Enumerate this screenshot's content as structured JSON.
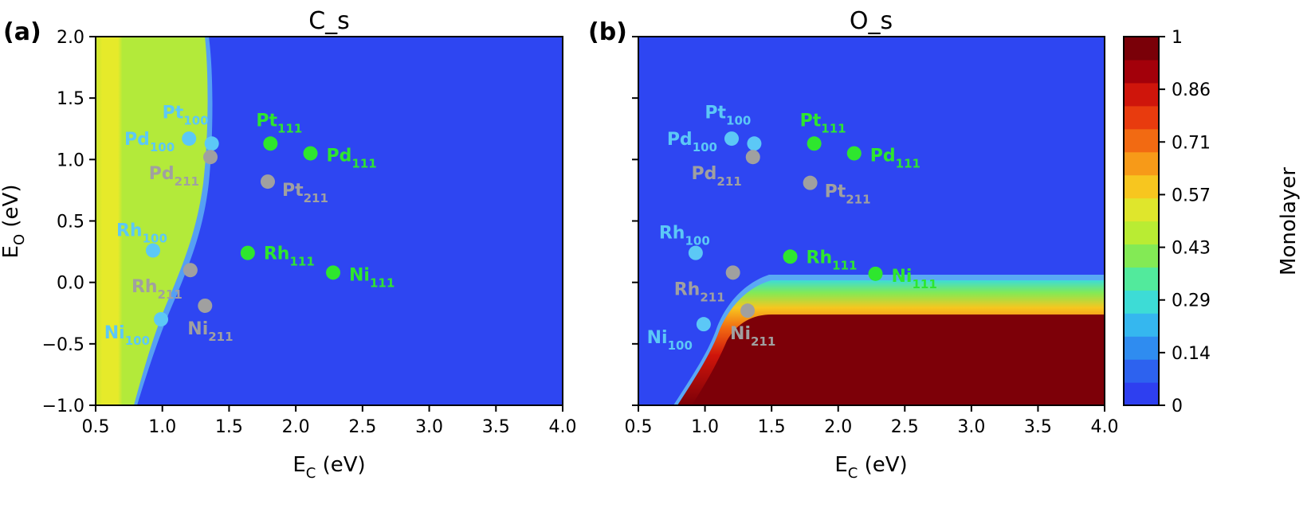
{
  "chart_data": [
    {
      "type": "heatmap",
      "panel_label": "(a)",
      "title": "C_s",
      "xlabel": {
        "main": "E",
        "sub": "C",
        "rest": " (eV)"
      },
      "ylabel": {
        "main": "E",
        "sub": "O",
        "rest": " (eV)"
      },
      "xlim": [
        0.5,
        4.0
      ],
      "ylim": [
        -1.0,
        2.0
      ],
      "xticks": [
        "0.5",
        "1.0",
        "1.5",
        "2.0",
        "2.5",
        "3.0",
        "3.5",
        "4.0"
      ],
      "yticks": [
        "−1.0",
        "−0.5",
        "0.0",
        "0.5",
        "1.0",
        "1.5",
        "2.0"
      ],
      "points": [
        {
          "metal": "Pt",
          "facet": "100",
          "x": 1.37,
          "y": 1.13,
          "group": "100"
        },
        {
          "metal": "Pd",
          "facet": "100",
          "x": 1.2,
          "y": 1.17,
          "group": "100"
        },
        {
          "metal": "Rh",
          "facet": "100",
          "x": 0.93,
          "y": 0.26,
          "group": "100"
        },
        {
          "metal": "Ni",
          "facet": "100",
          "x": 0.99,
          "y": -0.3,
          "group": "100"
        },
        {
          "metal": "Pt",
          "facet": "111",
          "x": 1.81,
          "y": 1.13,
          "group": "111"
        },
        {
          "metal": "Pd",
          "facet": "111",
          "x": 2.11,
          "y": 1.05,
          "group": "111"
        },
        {
          "metal": "Rh",
          "facet": "111",
          "x": 1.64,
          "y": 0.24,
          "group": "111"
        },
        {
          "metal": "Ni",
          "facet": "111",
          "x": 2.28,
          "y": 0.08,
          "group": "111"
        },
        {
          "metal": "Pd",
          "facet": "211",
          "x": 1.36,
          "y": 1.02,
          "group": "211"
        },
        {
          "metal": "Pt",
          "facet": "211",
          "x": 1.79,
          "y": 0.82,
          "group": "211"
        },
        {
          "metal": "Rh",
          "facet": "211",
          "x": 1.21,
          "y": 0.1,
          "group": "211"
        },
        {
          "metal": "Ni",
          "facet": "211",
          "x": 1.32,
          "y": -0.19,
          "group": "211"
        }
      ]
    },
    {
      "type": "heatmap",
      "panel_label": "(b)",
      "title": "O_s",
      "xlabel": {
        "main": "E",
        "sub": "C",
        "rest": " (eV)"
      },
      "xlim": [
        0.5,
        4.0
      ],
      "ylim": [
        -1.0,
        2.0
      ],
      "xticks": [
        "0.5",
        "1.0",
        "1.5",
        "2.0",
        "2.5",
        "3.0",
        "3.5",
        "4.0"
      ],
      "points": [
        {
          "metal": "Pt",
          "facet": "100",
          "x": 1.37,
          "y": 1.13,
          "group": "100"
        },
        {
          "metal": "Pd",
          "facet": "100",
          "x": 1.2,
          "y": 1.17,
          "group": "100"
        },
        {
          "metal": "Rh",
          "facet": "100",
          "x": 0.93,
          "y": 0.24,
          "group": "100"
        },
        {
          "metal": "Ni",
          "facet": "100",
          "x": 0.99,
          "y": -0.34,
          "group": "100"
        },
        {
          "metal": "Pt",
          "facet": "111",
          "x": 1.82,
          "y": 1.13,
          "group": "111"
        },
        {
          "metal": "Pd",
          "facet": "111",
          "x": 2.12,
          "y": 1.05,
          "group": "111"
        },
        {
          "metal": "Rh",
          "facet": "111",
          "x": 1.64,
          "y": 0.21,
          "group": "111"
        },
        {
          "metal": "Ni",
          "facet": "111",
          "x": 2.28,
          "y": 0.07,
          "group": "111"
        },
        {
          "metal": "Pd",
          "facet": "211",
          "x": 1.36,
          "y": 1.02,
          "group": "211"
        },
        {
          "metal": "Pt",
          "facet": "211",
          "x": 1.79,
          "y": 0.81,
          "group": "211"
        },
        {
          "metal": "Rh",
          "facet": "211",
          "x": 1.21,
          "y": 0.08,
          "group": "211"
        },
        {
          "metal": "Ni",
          "facet": "211",
          "x": 1.32,
          "y": -0.23,
          "group": "211"
        }
      ]
    }
  ],
  "colorbar": {
    "label": "Monolayer",
    "ticks": [
      "0",
      "0.14",
      "0.29",
      "0.43",
      "0.57",
      "0.71",
      "0.86",
      "1"
    ],
    "colors": [
      "#2e3ff0",
      "#2d62ef",
      "#2f8cf0",
      "#35b7ef",
      "#3ddcd6",
      "#52ea9c",
      "#83ea55",
      "#b9ec33",
      "#dfe62c",
      "#f7c61f",
      "#f79a18",
      "#f26a12",
      "#e83b0e",
      "#cf150b",
      "#a3000a",
      "#7a0008"
    ]
  },
  "colors": {
    "group_100": "#5cc8f6",
    "group_111": "#2ee62e",
    "group_211": "#a0a0a0",
    "background_low": "#2e46f2",
    "c_s_high": "#dce92e",
    "o_s_high": "#7d0008"
  }
}
